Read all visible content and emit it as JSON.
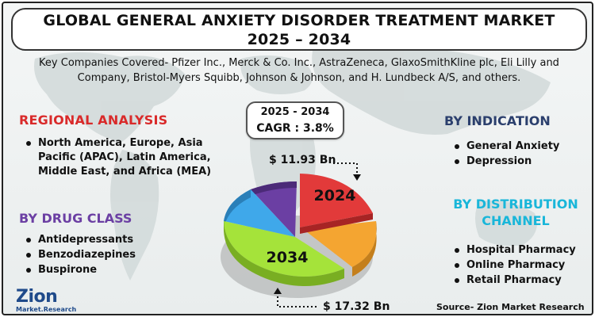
{
  "title": {
    "line1": "GLOBAL GENERAL ANXIETY DISORDER TREATMENT MARKET",
    "line2": "2025 – 2034"
  },
  "companies": {
    "text": "Key Companies Covered- Pfizer Inc., Merck & Co. Inc., AstraZeneca, GlaxoSmithKline plc, Eli Lilly and Company, Bristol-Myers Squibb, Johnson & Johnson, and H. Lundbeck A/S, and others."
  },
  "regional": {
    "heading": "REGIONAL ANALYSIS",
    "items": [
      "North America, Europe, Asia Pacific (APAC), Latin America, Middle East, and Africa (MEA)"
    ]
  },
  "drug_class": {
    "heading": "BY DRUG CLASS",
    "items": [
      "Antidepressants",
      "Benzodiazepines",
      "Buspirone"
    ]
  },
  "indication": {
    "heading": "BY INDICATION",
    "items": [
      "General Anxiety",
      "Depression"
    ]
  },
  "distribution": {
    "heading": "BY DISTRIBUTION CHANNEL",
    "items": [
      "Hospital Pharmacy",
      "Online Pharmacy",
      "Retail Pharmacy"
    ]
  },
  "cagr": {
    "years": "2025 - 2034",
    "value": "CAGR : 3.8%"
  },
  "market_values": {
    "start": "$ 11.93 Bn",
    "end": "$ 17.32 Bn"
  },
  "pie": {
    "label_start": "2024",
    "label_end": "2034",
    "colors": [
      "#e23a3a",
      "#f4a531",
      "#a5e33a",
      "#3fa8ea",
      "#6b3fa3"
    ]
  },
  "source": "Source- Zion Market Research",
  "logo": {
    "name": "Zion",
    "sub": "Market.Research"
  }
}
